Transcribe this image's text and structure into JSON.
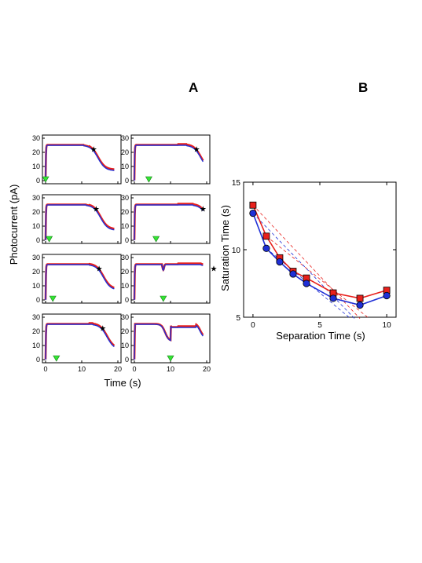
{
  "panel_labels": {
    "a": "A",
    "b": "B"
  },
  "chart_data": [
    {
      "type": "line",
      "panel": "A",
      "ylabel": "Photocurrent (pA)",
      "xlabel": "Time (s)",
      "xlim": [
        0,
        20
      ],
      "ylim": [
        0,
        30
      ],
      "xticks": [
        "0",
        "10",
        "20"
      ],
      "yticks": [
        "0",
        "10",
        "20",
        "30"
      ],
      "series_colors": {
        "measured": "#e8201c",
        "model": "#1f2fd6"
      },
      "flash_marker_color": "#33e533",
      "saturation_marker_color": "#8b1a1a",
      "subplots": [
        {
          "row": 1,
          "col": 1,
          "separation_s": 0,
          "second_flash_s": 0,
          "saturation_s": 13.3,
          "star_y": 22.5,
          "star_offplot": false
        },
        {
          "row": 1,
          "col": 2,
          "separation_s": 4,
          "second_flash_s": 4,
          "saturation_s": 17.2,
          "star_y": 22.5,
          "star_offplot": false
        },
        {
          "row": 2,
          "col": 1,
          "separation_s": 1,
          "second_flash_s": 1,
          "saturation_s": 14.0,
          "star_y": 22.5,
          "star_offplot": false
        },
        {
          "row": 2,
          "col": 2,
          "separation_s": 6,
          "second_flash_s": 6,
          "saturation_s": 19.0,
          "star_y": 22.5,
          "star_offplot": false
        },
        {
          "row": 3,
          "col": 1,
          "separation_s": 2,
          "second_flash_s": 2,
          "saturation_s": 14.8,
          "star_y": 22.5,
          "star_offplot": false
        },
        {
          "row": 3,
          "col": 2,
          "separation_s": 8,
          "second_flash_s": 8,
          "saturation_s": 21.2,
          "star_y": 22.5,
          "star_offplot": true
        },
        {
          "row": 4,
          "col": 1,
          "separation_s": 3,
          "second_flash_s": 3,
          "saturation_s": 15.8,
          "star_y": 22.5,
          "star_offplot": false
        },
        {
          "row": 4,
          "col": 2,
          "separation_s": 10,
          "second_flash_s": 10,
          "saturation_s": 0,
          "star_y": 0,
          "star_offplot": false
        }
      ]
    },
    {
      "type": "line",
      "panel": "B",
      "xlabel": "Separation Time (s)",
      "ylabel": "Saturation Time (s)",
      "xlim": [
        -0.7,
        10.7
      ],
      "ylim": [
        5,
        15
      ],
      "xticks": [
        0,
        5,
        10
      ],
      "yticks": [
        5,
        10,
        15
      ],
      "series": [
        {
          "color": "#e8201c",
          "marker": "square",
          "x": [
            0,
            1,
            2,
            3,
            4,
            6,
            8,
            10
          ],
          "y": [
            13.3,
            11.0,
            9.4,
            8.4,
            7.9,
            6.8,
            6.4,
            7.0
          ]
        },
        {
          "color": "#1f2fd6",
          "marker": "circle",
          "x": [
            0,
            1,
            2,
            3,
            4,
            6,
            8,
            10
          ],
          "y": [
            12.7,
            10.1,
            9.1,
            8.2,
            7.5,
            6.4,
            5.9,
            6.6
          ]
        }
      ],
      "dashed_guides": [
        {
          "color": "#e8201c",
          "from": [
            0,
            13.3
          ],
          "to": [
            8.0,
            4.9
          ]
        },
        {
          "color": "#e8201c",
          "from": [
            1,
            11.0
          ],
          "to": [
            8.7,
            4.9
          ]
        },
        {
          "color": "#1f2fd6",
          "from": [
            0,
            12.7
          ],
          "to": [
            7.6,
            4.9
          ]
        },
        {
          "color": "#1f2fd6",
          "from": [
            1,
            10.1
          ],
          "to": [
            7.3,
            4.9
          ]
        }
      ]
    }
  ]
}
